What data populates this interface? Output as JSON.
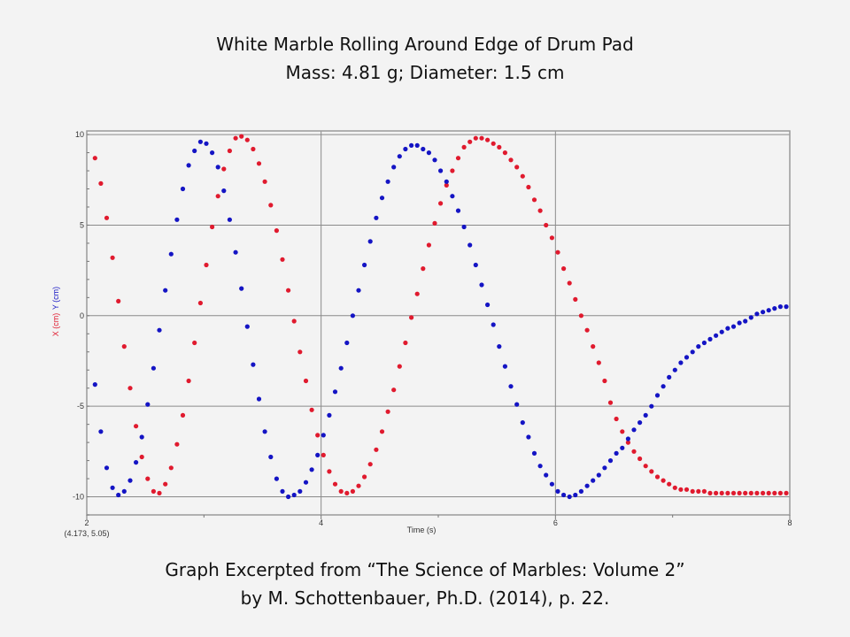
{
  "title": "White Marble Rolling Around Edge of Drum Pad",
  "subtitle": "Mass: 4.81 g; Diameter: 1.5 cm",
  "footer_line1": "Graph Excerpted from “The Science of Marbles: Volume 2”",
  "footer_line2": "by M. Schottenbauer, Ph.D. (2014), p. 22.",
  "cursor_readout": "(4.173, 5.05)",
  "colors": {
    "x_series": "#e01a2e",
    "y_series": "#1414c4",
    "grid": "#8a8a8a"
  },
  "chart_data": {
    "type": "scatter",
    "title": "White Marble Rolling Around Edge of Drum Pad",
    "xlabel": "Time (s)",
    "ylabel_parts": [
      "X (cm)",
      "Y (cm)"
    ],
    "xlim": [
      2,
      8
    ],
    "ylim": [
      -11,
      10.2
    ],
    "xticks": [
      "2",
      "4",
      "6",
      "8"
    ],
    "xtick_values": [
      2,
      4,
      6,
      8
    ],
    "yticks": [
      "10",
      "5",
      "0",
      "-5",
      "-10"
    ],
    "ytick_values": [
      10,
      5,
      0,
      -5,
      -10
    ],
    "grid": true,
    "t_start": 2.07,
    "t_step": 0.05,
    "series": [
      {
        "name": "X (cm)",
        "color": "#e01a2e",
        "values": [
          8.7,
          7.3,
          5.4,
          3.2,
          0.8,
          -1.7,
          -4.0,
          -6.1,
          -7.8,
          -9.0,
          -9.7,
          -9.8,
          -9.3,
          -8.4,
          -7.1,
          -5.5,
          -3.6,
          -1.5,
          0.7,
          2.8,
          4.9,
          6.6,
          8.1,
          9.1,
          9.8,
          9.9,
          9.7,
          9.2,
          8.4,
          7.4,
          6.1,
          4.7,
          3.1,
          1.4,
          -0.3,
          -2.0,
          -3.6,
          -5.2,
          -6.6,
          -7.7,
          -8.6,
          -9.3,
          -9.7,
          -9.8,
          -9.7,
          -9.4,
          -8.9,
          -8.2,
          -7.4,
          -6.4,
          -5.3,
          -4.1,
          -2.8,
          -1.5,
          -0.1,
          1.2,
          2.6,
          3.9,
          5.1,
          6.2,
          7.2,
          8.0,
          8.7,
          9.3,
          9.6,
          9.8,
          9.8,
          9.7,
          9.5,
          9.3,
          9.0,
          8.6,
          8.2,
          7.7,
          7.1,
          6.4,
          5.8,
          5.0,
          4.3,
          3.5,
          2.6,
          1.8,
          0.9,
          0.0,
          -0.8,
          -1.7,
          -2.6,
          -3.6,
          -4.8,
          -5.7,
          -6.4,
          -7.0,
          -7.5,
          -7.9,
          -8.3,
          -8.6,
          -8.9,
          -9.1,
          -9.3,
          -9.5,
          -9.6,
          -9.6,
          -9.7,
          -9.7,
          -9.7,
          -9.8,
          -9.8,
          -9.8,
          -9.8,
          -9.8,
          -9.8,
          -9.8,
          -9.8,
          -9.8,
          -9.8,
          -9.8,
          -9.8,
          -9.8,
          -9.8
        ]
      },
      {
        "name": "Y (cm)",
        "color": "#1414c4",
        "values": [
          -3.8,
          -6.4,
          -8.4,
          -9.5,
          -9.9,
          -9.7,
          -9.1,
          -8.1,
          -6.7,
          -4.9,
          -2.9,
          -0.8,
          1.4,
          3.4,
          5.3,
          7.0,
          8.3,
          9.1,
          9.6,
          9.5,
          9.0,
          8.2,
          6.9,
          5.3,
          3.5,
          1.5,
          -0.6,
          -2.7,
          -4.6,
          -6.4,
          -7.8,
          -9.0,
          -9.7,
          -10.0,
          -9.9,
          -9.7,
          -9.2,
          -8.5,
          -7.7,
          -6.6,
          -5.5,
          -4.2,
          -2.9,
          -1.5,
          0.0,
          1.4,
          2.8,
          4.1,
          5.4,
          6.5,
          7.4,
          8.2,
          8.8,
          9.2,
          9.4,
          9.4,
          9.2,
          9.0,
          8.6,
          8.0,
          7.4,
          6.6,
          5.8,
          4.9,
          3.9,
          2.8,
          1.7,
          0.6,
          -0.5,
          -1.7,
          -2.8,
          -3.9,
          -4.9,
          -5.9,
          -6.7,
          -7.6,
          -8.3,
          -8.8,
          -9.3,
          -9.7,
          -9.9,
          -10.0,
          -9.9,
          -9.7,
          -9.4,
          -9.1,
          -8.8,
          -8.4,
          -8.0,
          -7.6,
          -7.3,
          -6.8,
          -6.3,
          -5.9,
          -5.5,
          -5.0,
          -4.4,
          -3.9,
          -3.4,
          -3.0,
          -2.6,
          -2.3,
          -2.0,
          -1.7,
          -1.5,
          -1.3,
          -1.1,
          -0.9,
          -0.7,
          -0.6,
          -0.4,
          -0.3,
          -0.1,
          0.1,
          0.2,
          0.3,
          0.4,
          0.5,
          0.5
        ]
      }
    ]
  }
}
